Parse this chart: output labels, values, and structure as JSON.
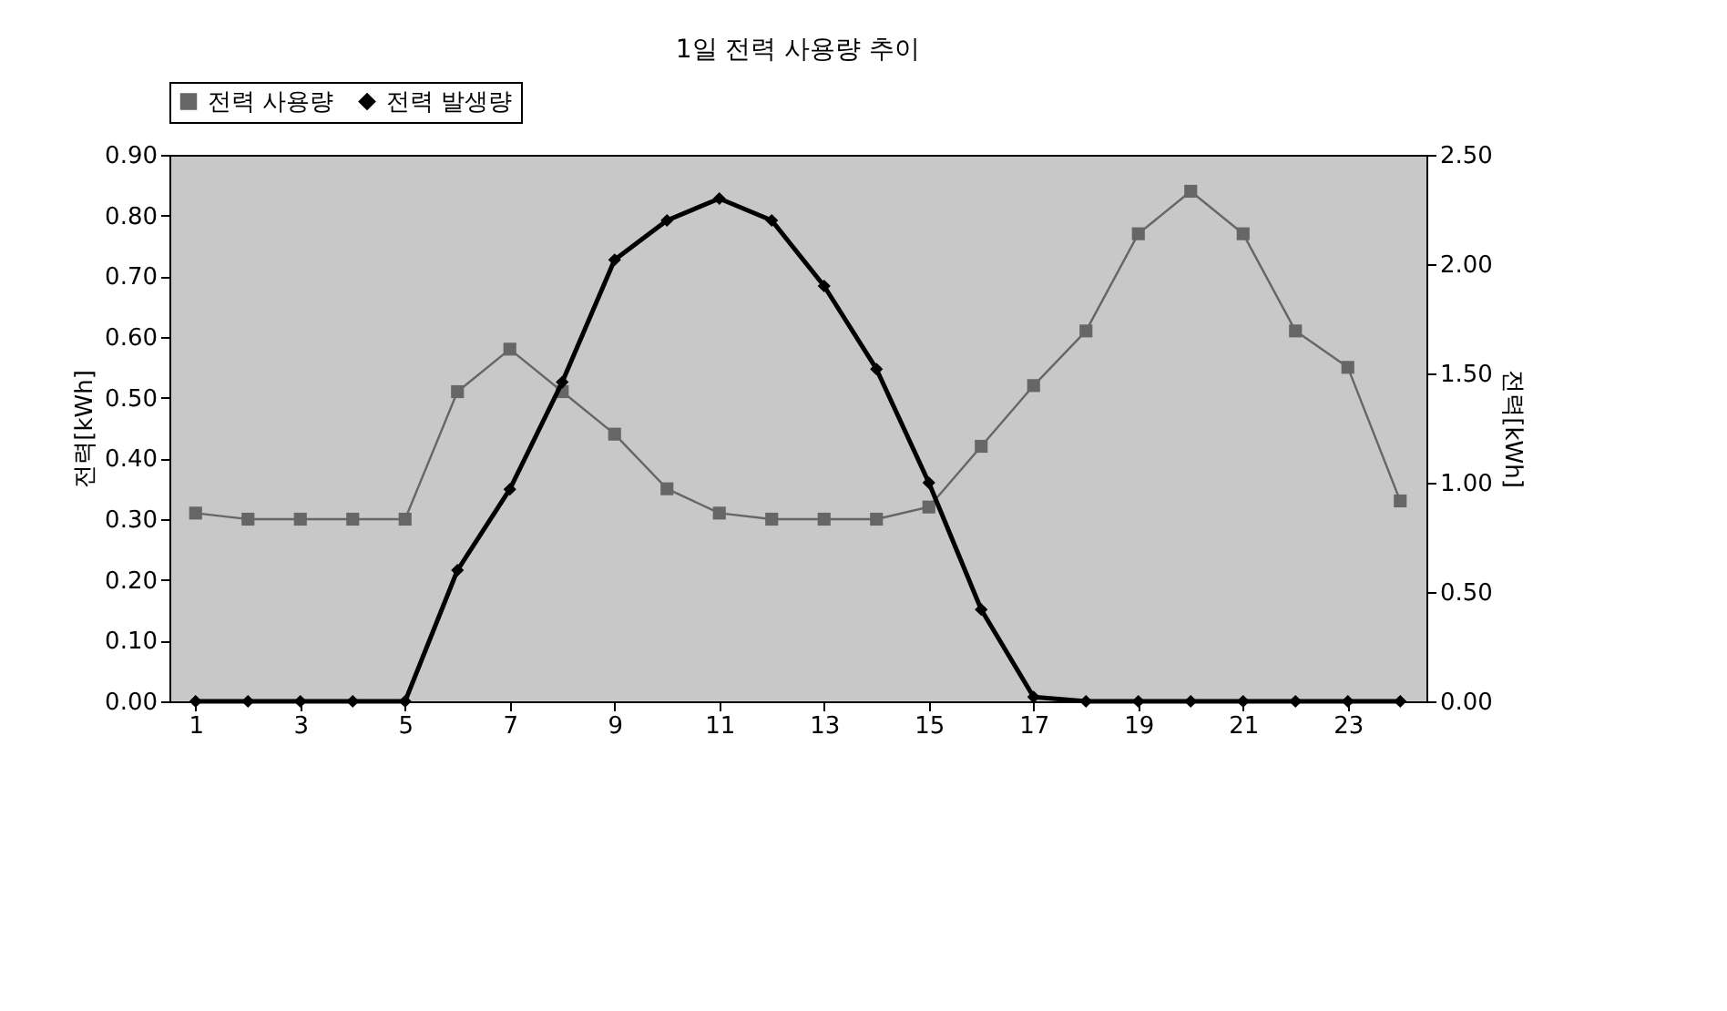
{
  "chart_data": {
    "type": "line",
    "title": "1일 전력 사용량 추이",
    "ylabel": "전력[kWh]",
    "y2label": "전력[kWh]",
    "x": [
      1,
      2,
      3,
      4,
      5,
      6,
      7,
      8,
      9,
      10,
      11,
      12,
      13,
      14,
      15,
      16,
      17,
      18,
      19,
      20,
      21,
      22,
      23,
      24
    ],
    "xlim": [
      0.5,
      24.5
    ],
    "xticks": [
      1,
      3,
      5,
      7,
      9,
      11,
      13,
      15,
      17,
      19,
      21,
      23
    ],
    "ylim": [
      0,
      0.9
    ],
    "yticks": [
      {
        "value": 0,
        "label": "0.00"
      },
      {
        "value": 0.1,
        "label": "0.10"
      },
      {
        "value": 0.2,
        "label": "0.20"
      },
      {
        "value": 0.3,
        "label": "0.30"
      },
      {
        "value": 0.4,
        "label": "0.40"
      },
      {
        "value": 0.5,
        "label": "0.50"
      },
      {
        "value": 0.6,
        "label": "0.60"
      },
      {
        "value": 0.7,
        "label": "0.70"
      },
      {
        "value": 0.8,
        "label": "0.80"
      },
      {
        "value": 0.9,
        "label": "0.90"
      }
    ],
    "y2lim": [
      0,
      2.5
    ],
    "y2ticks": [
      {
        "value": 0,
        "label": "0.00"
      },
      {
        "value": 0.5,
        "label": "0.50"
      },
      {
        "value": 1,
        "label": "1.00"
      },
      {
        "value": 1.5,
        "label": "1.50"
      },
      {
        "value": 2,
        "label": "2.00"
      },
      {
        "value": 2.5,
        "label": "2.50"
      }
    ],
    "series": [
      {
        "name": "전력 사용량",
        "color": "#666666",
        "marker": "square",
        "values": [
          0.31,
          0.3,
          0.3,
          0.3,
          0.3,
          0.51,
          0.58,
          0.51,
          0.44,
          0.35,
          0.31,
          0.3,
          0.3,
          0.3,
          0.32,
          0.42,
          0.52,
          0.61,
          0.77,
          0.84,
          0.77,
          0.61,
          0.55,
          0.33
        ]
      },
      {
        "name": "전력 발생량",
        "color": "#000000",
        "marker": "diamond",
        "axis": "y2",
        "values": [
          0,
          0,
          0,
          0,
          0,
          0.6,
          0.97,
          1.46,
          2.02,
          2.2,
          2.3,
          2.2,
          1.9,
          1.52,
          1.0,
          0.42,
          0.02,
          0,
          0,
          0,
          0,
          0,
          0,
          0
        ]
      }
    ],
    "legend": "top",
    "grid": false,
    "line_style": "solid"
  }
}
